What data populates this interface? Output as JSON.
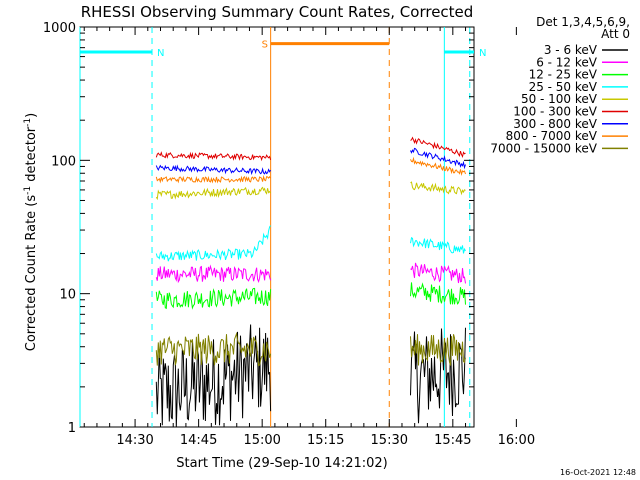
{
  "chart_data": {
    "type": "line",
    "title": "RHESSI Observing Summary Count Rates, Corrected",
    "xlabel": "Start Time (29-Sep-10 14:21:02)",
    "ylabel_main": "Corrected Count Rate (s",
    "ylabel_sup1": "-1",
    "ylabel_mid": " detector",
    "ylabel_sup2": "-1",
    "ylabel_end": ")",
    "yscale": "log",
    "ylim": [
      1,
      1000
    ],
    "xlim_minutes": [
      -4,
      89
    ],
    "x_ticks": [
      "14:30",
      "14:45",
      "15:00",
      "15:15",
      "15:30",
      "15:45",
      "16:00"
    ],
    "y_ticks": [
      "1",
      "10",
      "100",
      "1000"
    ],
    "detectors_label": "Det 1,3,4,5,6,9,",
    "attenuator_label": "Att 0",
    "timestamp": "16-Oct-2021 12:48",
    "series": [
      {
        "name": "3 - 6 keV",
        "color": "#000000",
        "seg1": {
          "start": 1.7,
          "end": 2.9
        },
        "seg2": {
          "start": 2.3,
          "end": 2.8
        },
        "noise": 0.35
      },
      {
        "name": "6 - 12 keV",
        "color": "#ff00ff",
        "seg1": {
          "start": 14,
          "end": 14
        },
        "seg2": {
          "start": 15,
          "end": 13.5
        },
        "noise": 0.06
      },
      {
        "name": "12 - 25 keV",
        "color": "#00ff00",
        "seg1": {
          "start": 9,
          "end": 9.5
        },
        "seg2": {
          "start": 10.5,
          "end": 9.5
        },
        "noise": 0.07
      },
      {
        "name": "25 - 50 keV",
        "color": "#00ffff",
        "seg1": {
          "start": 19,
          "end": 20,
          "rise_to": 30
        },
        "seg2": {
          "start": 25,
          "end": 21
        },
        "noise": 0.04
      },
      {
        "name": "50 - 100 keV",
        "color": "#c8c800",
        "seg1": {
          "start": 55,
          "end": 60
        },
        "seg2": {
          "start": 65,
          "end": 58
        },
        "noise": 0.03
      },
      {
        "name": "100 - 300 keV",
        "color": "#e00000",
        "seg1": {
          "start": 110,
          "end": 105
        },
        "seg2": {
          "start": 145,
          "end": 110
        },
        "noise": 0.02
      },
      {
        "name": "300 - 800 keV",
        "color": "#0000ff",
        "seg1": {
          "start": 88,
          "end": 82
        },
        "seg2": {
          "start": 120,
          "end": 92
        },
        "noise": 0.02
      },
      {
        "name": "800 - 7000 keV",
        "color": "#ff8000",
        "seg1": {
          "start": 72,
          "end": 72
        },
        "seg2": {
          "start": 100,
          "end": 80
        },
        "noise": 0.02
      },
      {
        "name": "7000 - 15000 keV",
        "color": "#808000",
        "seg1": {
          "start": 3.8,
          "end": 3.8
        },
        "seg2": {
          "start": 3.8,
          "end": 3.8
        },
        "noise": 0.12
      }
    ],
    "segments_minutes": [
      [
        14,
        41
      ],
      [
        74,
        87
      ]
    ],
    "annotations": [
      {
        "label": "N",
        "color": "#00ffff",
        "bar_level": 650,
        "bar_start": -4,
        "bar_end": 13,
        "dashed_at": [
          13
        ],
        "solid_at": [
          -4
        ]
      },
      {
        "label": "N",
        "color": "#00ffff",
        "bar_level": 650,
        "bar_start": 82,
        "bar_end": 89,
        "dashed_at": [
          88
        ],
        "solid_at": [
          82
        ]
      },
      {
        "label": "S",
        "color": "#ff8000",
        "bar_level": 750,
        "bar_start": 41,
        "bar_end": 69,
        "dashed_at": [
          69
        ],
        "solid_at": [
          41
        ]
      }
    ]
  }
}
